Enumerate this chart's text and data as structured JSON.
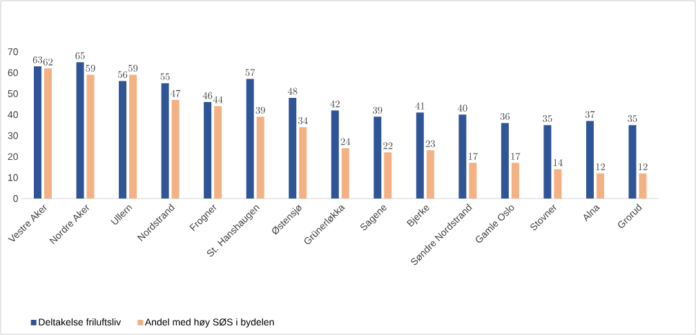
{
  "chart_data": {
    "type": "bar",
    "categories": [
      "Vestre Aker",
      "Nordre Aker",
      "Ullern",
      "Nordstrand",
      "Frogner",
      "St. Hanshaugen",
      "Østensjø",
      "Grünerløkka",
      "Sagene",
      "Bjerke",
      "Søndre Nordstrand",
      "Gamle Oslo",
      "Stovner",
      "Alna",
      "Grorud"
    ],
    "series": [
      {
        "name": "Deltakelse friluftsliv",
        "color": "#2f5597",
        "values": [
          63,
          65,
          56,
          55,
          46,
          57,
          48,
          42,
          39,
          41,
          40,
          36,
          35,
          37,
          35
        ]
      },
      {
        "name": "Andel med høy SØS i bydelen",
        "color": "#f4b183",
        "values": [
          62,
          59,
          59,
          47,
          44,
          39,
          34,
          24,
          22,
          23,
          17,
          17,
          14,
          12,
          12
        ]
      }
    ],
    "ylim": [
      0,
      70
    ],
    "yticks": [
      0,
      10,
      20,
      30,
      40,
      50,
      60,
      70
    ],
    "grid": false,
    "legend": "bottom left",
    "data_labels": true
  }
}
